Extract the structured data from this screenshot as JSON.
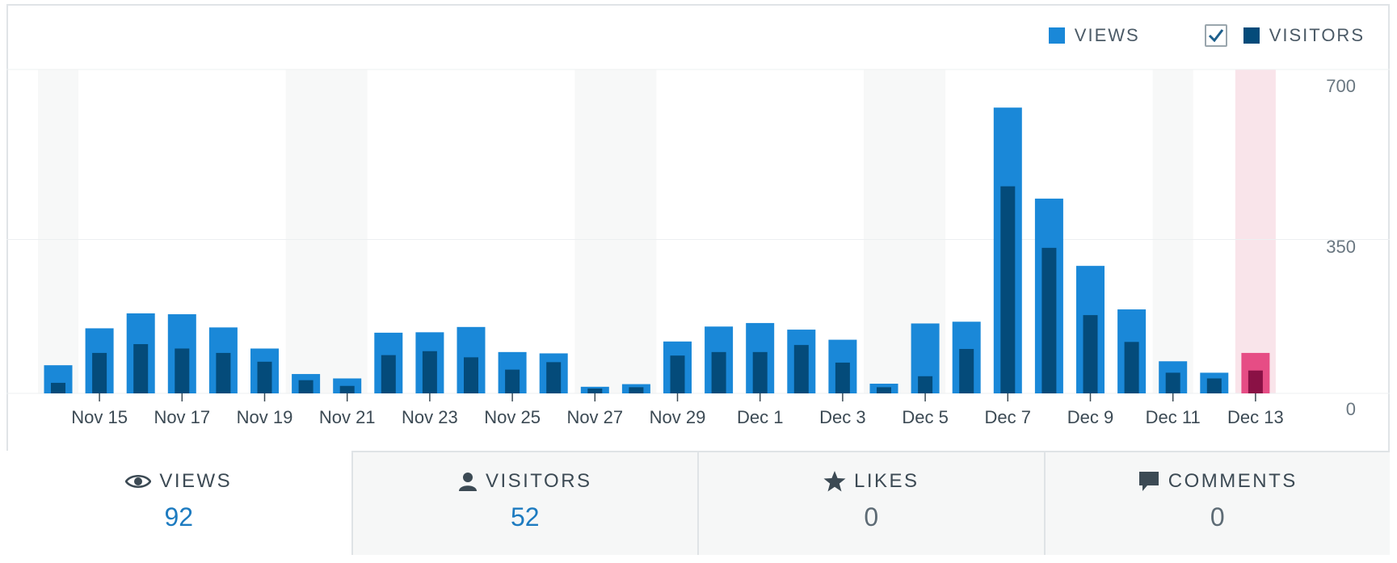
{
  "legend": {
    "views_label": "VIEWS",
    "visitors_label": "VISITORS",
    "visitors_checked": true
  },
  "colors": {
    "views": "#1a88d8",
    "visitors": "#044b7a",
    "highlight_views": "#e64d85",
    "highlight_visitors": "#8a1145",
    "highlight_band": "#f9e4ea",
    "weekend_band": "#f7f8f8",
    "value_blue": "#1d7bc0"
  },
  "chart_data": {
    "type": "bar",
    "title": "",
    "xlabel": "",
    "ylabel": "",
    "ylim": [
      0,
      700
    ],
    "yticks": [
      "700",
      "350",
      "0"
    ],
    "categories": [
      "Nov 14",
      "Nov 15",
      "Nov 16",
      "Nov 17",
      "Nov 18",
      "Nov 19",
      "Nov 20",
      "Nov 21",
      "Nov 22",
      "Nov 23",
      "Nov 24",
      "Nov 25",
      "Nov 26",
      "Nov 27",
      "Nov 28",
      "Nov 29",
      "Nov 30",
      "Dec 1",
      "Dec 2",
      "Dec 3",
      "Dec 4",
      "Dec 5",
      "Dec 6",
      "Dec 7",
      "Dec 8",
      "Dec 9",
      "Dec 10",
      "Dec 11",
      "Dec 12",
      "Dec 13"
    ],
    "tick_labels": [
      "Nov 15",
      "Nov 17",
      "Nov 19",
      "Nov 21",
      "Nov 23",
      "Nov 25",
      "Nov 27",
      "Nov 29",
      "Dec 1",
      "Dec 3",
      "Dec 5",
      "Dec 7",
      "Dec 9",
      "Dec 11",
      "Dec 13"
    ],
    "series": [
      {
        "name": "VIEWS",
        "values": [
          64,
          148,
          182,
          180,
          150,
          102,
          44,
          34,
          138,
          139,
          151,
          94,
          91,
          15,
          21,
          118,
          152,
          160,
          145,
          122,
          22,
          159,
          163,
          650,
          443,
          290,
          191,
          73,
          47,
          92
        ]
      },
      {
        "name": "VISITORS",
        "values": [
          24,
          92,
          112,
          102,
          92,
          72,
          30,
          17,
          87,
          96,
          82,
          54,
          71,
          11,
          14,
          86,
          94,
          94,
          110,
          70,
          14,
          39,
          101,
          471,
          331,
          178,
          117,
          47,
          34,
          52
        ]
      }
    ],
    "weekend_bands": [
      [
        0,
        0
      ],
      [
        6,
        7
      ],
      [
        13,
        14
      ],
      [
        20,
        21
      ],
      [
        27,
        27
      ]
    ],
    "highlighted_index": 29,
    "grid": true
  },
  "tabs": [
    {
      "label": "VIEWS",
      "value": "92"
    },
    {
      "label": "VISITORS",
      "value": "52"
    },
    {
      "label": "LIKES",
      "value": "0"
    },
    {
      "label": "COMMENTS",
      "value": "0"
    }
  ]
}
